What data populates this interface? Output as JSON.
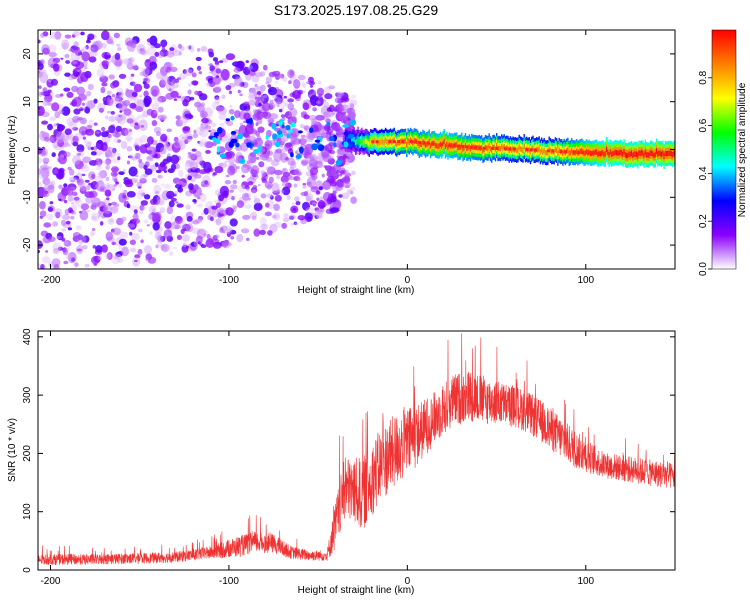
{
  "title": "S173.2025.197.08.25.G29",
  "chart_data": [
    {
      "type": "heatmap",
      "panel": "spectrogram",
      "xlabel": "Height of straight line (km)",
      "ylabel": "Frequency (Hz)",
      "xlim": [
        -207,
        150
      ],
      "ylim": [
        -25,
        25
      ],
      "xticks": [
        -200,
        -100,
        0,
        100
      ],
      "yticks": [
        -20,
        -10,
        0,
        10,
        20
      ],
      "colorbar": {
        "label": "Normalized spectral amplitude",
        "range": [
          0,
          1
        ],
        "ticks": [
          0.0,
          0.2,
          0.4,
          0.6,
          0.8
        ],
        "tick_labels": [
          "0.0",
          "0.2",
          "0.4",
          "0.6",
          "0.8"
        ],
        "colormap": [
          "#ffffff",
          "#8a00ff",
          "#0000ff",
          "#00ffff",
          "#00ff00",
          "#ffff00",
          "#ff7f00",
          "#ff0000"
        ]
      },
      "signal_trace": {
        "x": [
          -35,
          -20,
          0,
          20,
          40,
          60,
          80,
          100,
          120,
          150
        ],
        "freq": [
          2.0,
          1.6,
          1.7,
          1.0,
          0.3,
          0.1,
          -0.3,
          -0.7,
          -0.9,
          -1.0
        ],
        "amplitude": [
          0.3,
          0.8,
          0.9,
          0.95,
          0.9,
          0.85,
          0.85,
          0.95,
          1.0,
          1.0
        ]
      },
      "noise_extent_x": [
        -207,
        -30
      ],
      "grid": false
    },
    {
      "type": "line",
      "panel": "snr",
      "xlabel": "Height of straight line (km)",
      "ylabel": "SNR (10 * v/v)",
      "xlim": [
        -207,
        150
      ],
      "ylim": [
        0,
        410
      ],
      "xticks": [
        -200,
        -100,
        0,
        100
      ],
      "yticks": [
        0,
        100,
        200,
        300,
        400
      ],
      "series": [
        {
          "color": "#ee3333",
          "x": [
            -207,
            -180,
            -150,
            -130,
            -110,
            -95,
            -85,
            -75,
            -65,
            -55,
            -45,
            -40,
            -35,
            -25,
            -15,
            -5,
            5,
            15,
            25,
            35,
            45,
            55,
            65,
            75,
            85,
            95,
            110,
            130,
            150
          ],
          "mean": [
            18,
            18,
            20,
            22,
            30,
            40,
            48,
            45,
            30,
            25,
            25,
            80,
            140,
            130,
            180,
            210,
            230,
            260,
            290,
            300,
            290,
            285,
            275,
            255,
            230,
            205,
            180,
            170,
            160
          ],
          "spread": [
            10,
            10,
            10,
            10,
            12,
            20,
            20,
            18,
            12,
            10,
            10,
            50,
            60,
            70,
            70,
            70,
            60,
            50,
            50,
            50,
            45,
            40,
            40,
            40,
            40,
            35,
            25,
            25,
            25
          ]
        }
      ],
      "grid": false
    }
  ]
}
